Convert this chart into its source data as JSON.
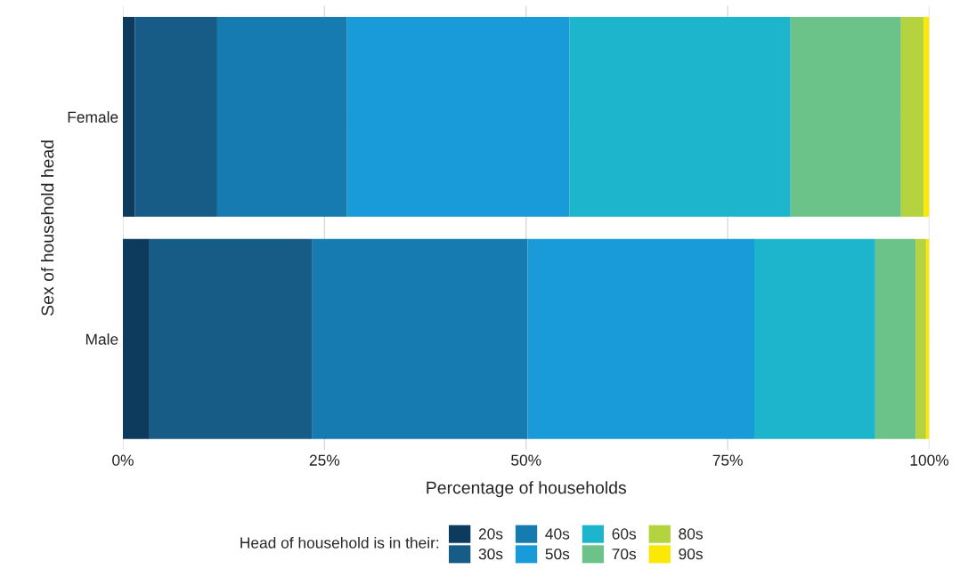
{
  "chart_data": {
    "type": "bar",
    "orientation": "horizontal",
    "stacked": true,
    "xlabel": "Percentage of households",
    "ylabel": "Sex of household head",
    "legend_title": "Head of household is in their:",
    "categories": [
      "Female",
      "Male"
    ],
    "series": [
      {
        "name": "20s",
        "color": "#0d3b5e",
        "values": [
          1.5,
          3.3
        ]
      },
      {
        "name": "30s",
        "color": "#175c87",
        "values": [
          10.2,
          20.2
        ]
      },
      {
        "name": "40s",
        "color": "#157bb0",
        "values": [
          16.1,
          26.7
        ]
      },
      {
        "name": "50s",
        "color": "#1a9bd9",
        "values": [
          27.6,
          28.1
        ]
      },
      {
        "name": "60s",
        "color": "#1cb5cb",
        "values": [
          27.4,
          15.0
        ]
      },
      {
        "name": "70s",
        "color": "#6cc389",
        "values": [
          13.7,
          5.0
        ]
      },
      {
        "name": "80s",
        "color": "#b5d33f",
        "values": [
          2.8,
          1.3
        ]
      },
      {
        "name": "90s",
        "color": "#fce806",
        "values": [
          0.7,
          0.4
        ]
      }
    ],
    "xlim": [
      0,
      100
    ],
    "xticks": [
      {
        "value": 0,
        "label": "0%"
      },
      {
        "value": 25,
        "label": "25%"
      },
      {
        "value": 50,
        "label": "50%"
      },
      {
        "value": 75,
        "label": "75%"
      },
      {
        "value": 100,
        "label": "100%"
      }
    ],
    "grid": true,
    "legend": "bottom"
  }
}
